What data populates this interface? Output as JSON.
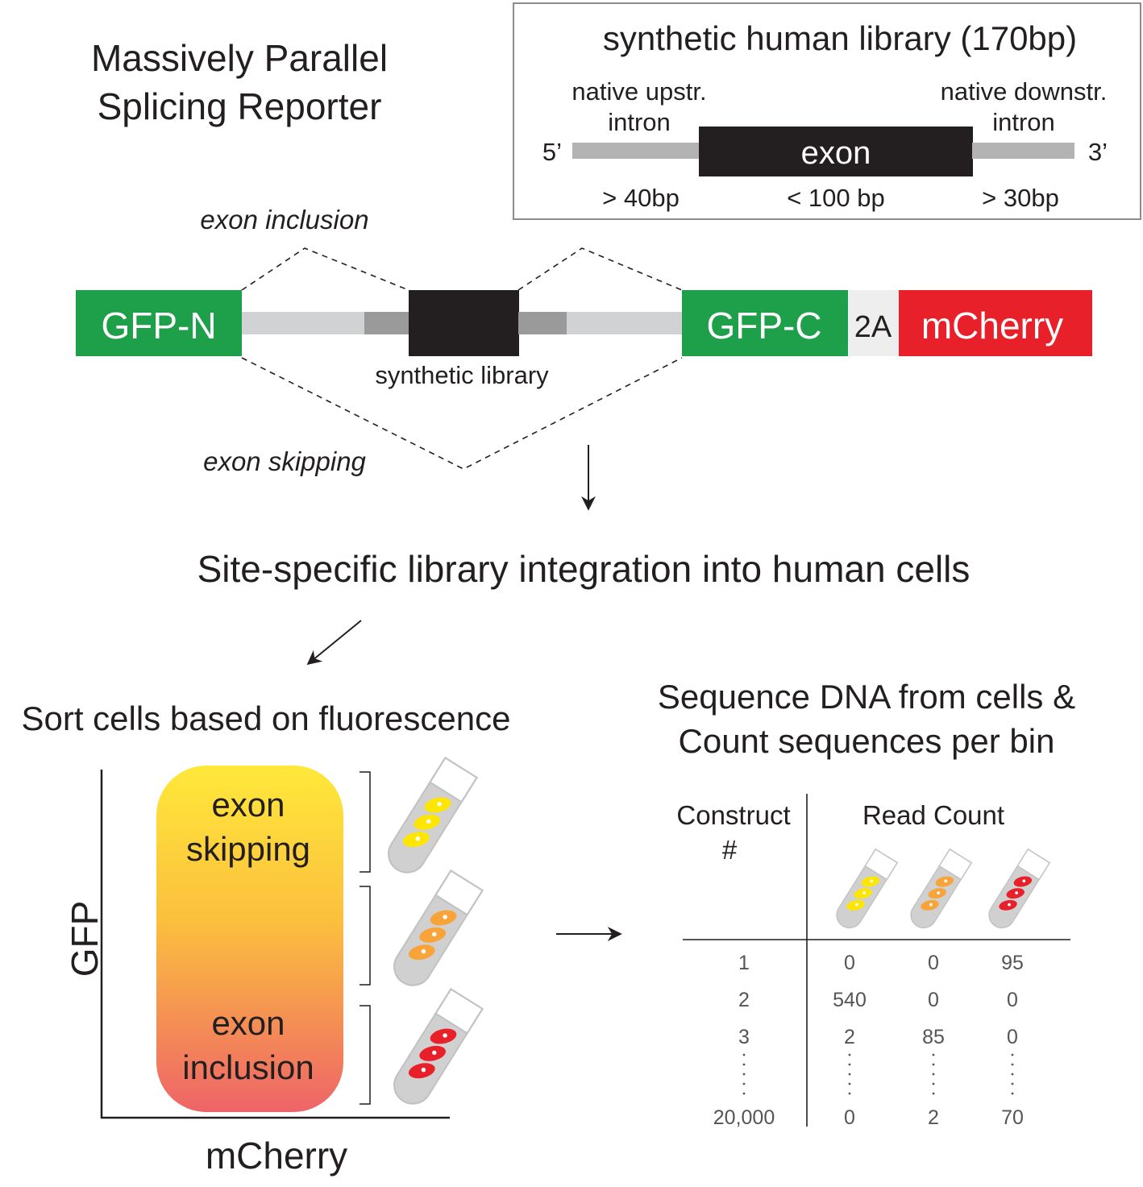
{
  "title": {
    "line1": "Massively Parallel",
    "line2": "Splicing Reporter"
  },
  "library_box": {
    "title": "synthetic human library (170bp)",
    "upstream_label_1": "native upstr.",
    "upstream_label_2": "intron",
    "downstream_label_1": "native downstr.",
    "downstream_label_2": "intron",
    "five_prime": "5’",
    "three_prime": "3’",
    "exon_label": "exon",
    "upstream_size": "> 40bp",
    "exon_size": "< 100 bp",
    "downstream_size": "> 30bp"
  },
  "reporter": {
    "inclusion_label": "exon inclusion",
    "skipping_label": "exon skipping",
    "gfp_n": "GFP-N",
    "gfp_c": "GFP-C",
    "t2a": "2A",
    "mcherry": "mCherry",
    "library_label": "synthetic library"
  },
  "step_integration": "Site-specific library integration into human cells",
  "sort": {
    "title": "Sort cells based on fluorescence",
    "gate_top_1": "exon",
    "gate_top_2": "skipping",
    "gate_bottom_1": "exon",
    "gate_bottom_2": "inclusion",
    "y_axis": "GFP",
    "x_axis": "mCherry"
  },
  "sequence": {
    "title_1": "Sequence DNA from cells &",
    "title_2": "Count sequences per bin",
    "construct_header_1": "Construct",
    "construct_header_2": "#",
    "read_count_header": "Read Count",
    "rows": [
      {
        "construct": "1",
        "c1": "0",
        "c2": "0",
        "c3": "95"
      },
      {
        "construct": "2",
        "c1": "540",
        "c2": "0",
        "c3": "0"
      },
      {
        "construct": "3",
        "c1": "2",
        "c2": "85",
        "c3": "0"
      },
      {
        "construct": "20,000",
        "c1": "0",
        "c2": "2",
        "c3": "70"
      }
    ]
  },
  "colors": {
    "gfp_green": "#1ea04b",
    "mcherry_red": "#e8202a",
    "exon_black": "#231f20",
    "intron_gray": "#b3b3b3",
    "yellow_cells": "#ffe600",
    "orange_cells": "#f8a43a",
    "red_cells": "#e8202a",
    "gate_top": "#ffe33c",
    "gate_bottom": "#ee6468"
  },
  "icons": [
    "arrow-down-icon",
    "arrow-diagonal-icon",
    "arrow-right-icon",
    "test-tube-icon"
  ]
}
